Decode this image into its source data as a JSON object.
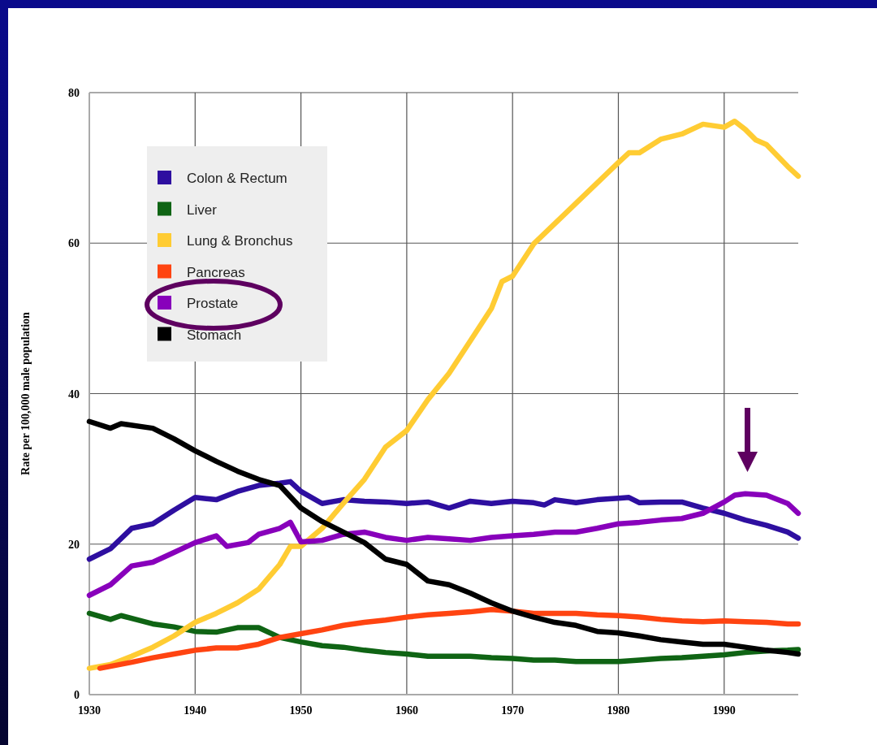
{
  "chart_data": {
    "type": "line",
    "ylabel": "Rate per 100,000 male population",
    "xlim": [
      1930,
      1997
    ],
    "xticks": [
      1930,
      1940,
      1950,
      1960,
      1970,
      1980,
      1990
    ],
    "ylim": [
      0,
      80
    ],
    "yticks": [
      0,
      20,
      40,
      60,
      80
    ],
    "grid": true,
    "legend": "top left",
    "marker": "none",
    "line_style": "solid",
    "series": [
      {
        "name": "Colon & Rectum",
        "color": "#2e0fa0",
        "x": [
          1930,
          1932,
          1934,
          1936,
          1938,
          1940,
          1942,
          1944,
          1946,
          1948,
          1949,
          1950,
          1952,
          1954,
          1956,
          1958,
          1960,
          1962,
          1964,
          1966,
          1968,
          1970,
          1972,
          1973,
          1974,
          1976,
          1978,
          1980,
          1981,
          1982,
          1984,
          1986,
          1988,
          1990,
          1992,
          1994,
          1996,
          1997
        ],
        "values": [
          18.0,
          19.4,
          22.1,
          22.7,
          24.5,
          26.2,
          25.9,
          27.0,
          27.8,
          28.1,
          28.3,
          27.0,
          25.4,
          25.9,
          25.7,
          25.6,
          25.4,
          25.6,
          24.8,
          25.7,
          25.4,
          25.7,
          25.5,
          25.2,
          25.9,
          25.5,
          25.9,
          26.1,
          26.2,
          25.5,
          25.6,
          25.6,
          24.8,
          24.1,
          23.2,
          22.5,
          21.6,
          20.8
        ]
      },
      {
        "name": "Liver",
        "color": "#0f6414",
        "x": [
          1930,
          1932,
          1933,
          1936,
          1938,
          1940,
          1942,
          1944,
          1946,
          1948,
          1950,
          1952,
          1954,
          1956,
          1958,
          1960,
          1962,
          1964,
          1966,
          1968,
          1970,
          1972,
          1974,
          1976,
          1978,
          1980,
          1982,
          1984,
          1986,
          1988,
          1990,
          1992,
          1994,
          1996,
          1997
        ],
        "values": [
          10.8,
          10.0,
          10.5,
          9.4,
          9.0,
          8.4,
          8.3,
          8.9,
          8.9,
          7.6,
          7.0,
          6.5,
          6.3,
          5.9,
          5.6,
          5.4,
          5.1,
          5.1,
          5.1,
          4.9,
          4.8,
          4.6,
          4.6,
          4.4,
          4.4,
          4.4,
          4.6,
          4.8,
          4.9,
          5.1,
          5.3,
          5.6,
          5.8,
          5.9,
          6.0
        ]
      },
      {
        "name": "Lung & Bronchus",
        "color": "#ffcc33",
        "x": [
          1930,
          1932,
          1934,
          1936,
          1938,
          1940,
          1942,
          1944,
          1946,
          1948,
          1949,
          1950,
          1952,
          1954,
          1956,
          1958,
          1960,
          1962,
          1964,
          1966,
          1968,
          1969,
          1970,
          1972,
          1974,
          1976,
          1978,
          1980,
          1981,
          1982,
          1984,
          1986,
          1988,
          1990,
          1991,
          1992,
          1993,
          1994,
          1996,
          1997
        ],
        "values": [
          3.5,
          4.0,
          5.1,
          6.3,
          7.8,
          9.6,
          10.8,
          12.2,
          14.0,
          17.3,
          19.7,
          19.7,
          22.1,
          25.4,
          28.6,
          32.9,
          35.1,
          39.2,
          42.7,
          47.0,
          51.3,
          54.9,
          55.6,
          59.9,
          62.6,
          65.3,
          68.0,
          70.7,
          72.0,
          72.0,
          73.8,
          74.5,
          75.8,
          75.4,
          76.2,
          75.1,
          73.7,
          73.1,
          70.2,
          68.9
        ]
      },
      {
        "name": "Pancreas",
        "color": "#ff4411",
        "x": [
          1931,
          1934,
          1936,
          1938,
          1940,
          1942,
          1944,
          1946,
          1948,
          1950,
          1952,
          1954,
          1956,
          1958,
          1960,
          1962,
          1964,
          1966,
          1968,
          1970,
          1972,
          1974,
          1976,
          1978,
          1980,
          1982,
          1984,
          1986,
          1988,
          1990,
          1992,
          1994,
          1996,
          1997
        ],
        "values": [
          3.5,
          4.3,
          4.9,
          5.4,
          5.9,
          6.2,
          6.2,
          6.7,
          7.6,
          8.1,
          8.6,
          9.2,
          9.6,
          9.9,
          10.3,
          10.6,
          10.8,
          11.0,
          11.3,
          11.1,
          10.8,
          10.8,
          10.8,
          10.6,
          10.5,
          10.3,
          10.0,
          9.8,
          9.7,
          9.8,
          9.7,
          9.6,
          9.4,
          9.4
        ]
      },
      {
        "name": "Prostate",
        "color": "#8800bb",
        "x": [
          1930,
          1932,
          1934,
          1936,
          1938,
          1940,
          1942,
          1943,
          1945,
          1946,
          1948,
          1949,
          1950,
          1952,
          1954,
          1956,
          1958,
          1960,
          1962,
          1964,
          1966,
          1968,
          1970,
          1972,
          1974,
          1976,
          1978,
          1980,
          1982,
          1984,
          1986,
          1988,
          1990,
          1991,
          1992,
          1994,
          1996,
          1997
        ],
        "values": [
          13.2,
          14.6,
          17.1,
          17.6,
          18.9,
          20.2,
          21.1,
          19.7,
          20.2,
          21.3,
          22.1,
          22.9,
          20.3,
          20.5,
          21.3,
          21.6,
          20.9,
          20.5,
          20.9,
          20.7,
          20.5,
          20.9,
          21.1,
          21.3,
          21.6,
          21.6,
          22.1,
          22.7,
          22.9,
          23.2,
          23.4,
          24.1,
          25.6,
          26.5,
          26.7,
          26.5,
          25.4,
          24.1
        ]
      },
      {
        "name": "Stomach",
        "color": "#000000",
        "x": [
          1930,
          1932,
          1933,
          1936,
          1938,
          1940,
          1942,
          1944,
          1946,
          1948,
          1950,
          1952,
          1954,
          1956,
          1958,
          1960,
          1962,
          1964,
          1966,
          1968,
          1970,
          1972,
          1974,
          1976,
          1978,
          1980,
          1982,
          1984,
          1986,
          1988,
          1990,
          1992,
          1994,
          1996,
          1997
        ],
        "values": [
          36.3,
          35.4,
          36.0,
          35.4,
          34.0,
          32.4,
          31.0,
          29.7,
          28.6,
          27.8,
          24.8,
          23.0,
          21.6,
          20.2,
          18.0,
          17.3,
          15.1,
          14.6,
          13.5,
          12.2,
          11.1,
          10.3,
          9.6,
          9.2,
          8.4,
          8.2,
          7.8,
          7.3,
          7.0,
          6.7,
          6.7,
          6.3,
          5.9,
          5.6,
          5.4
        ]
      }
    ]
  }
}
